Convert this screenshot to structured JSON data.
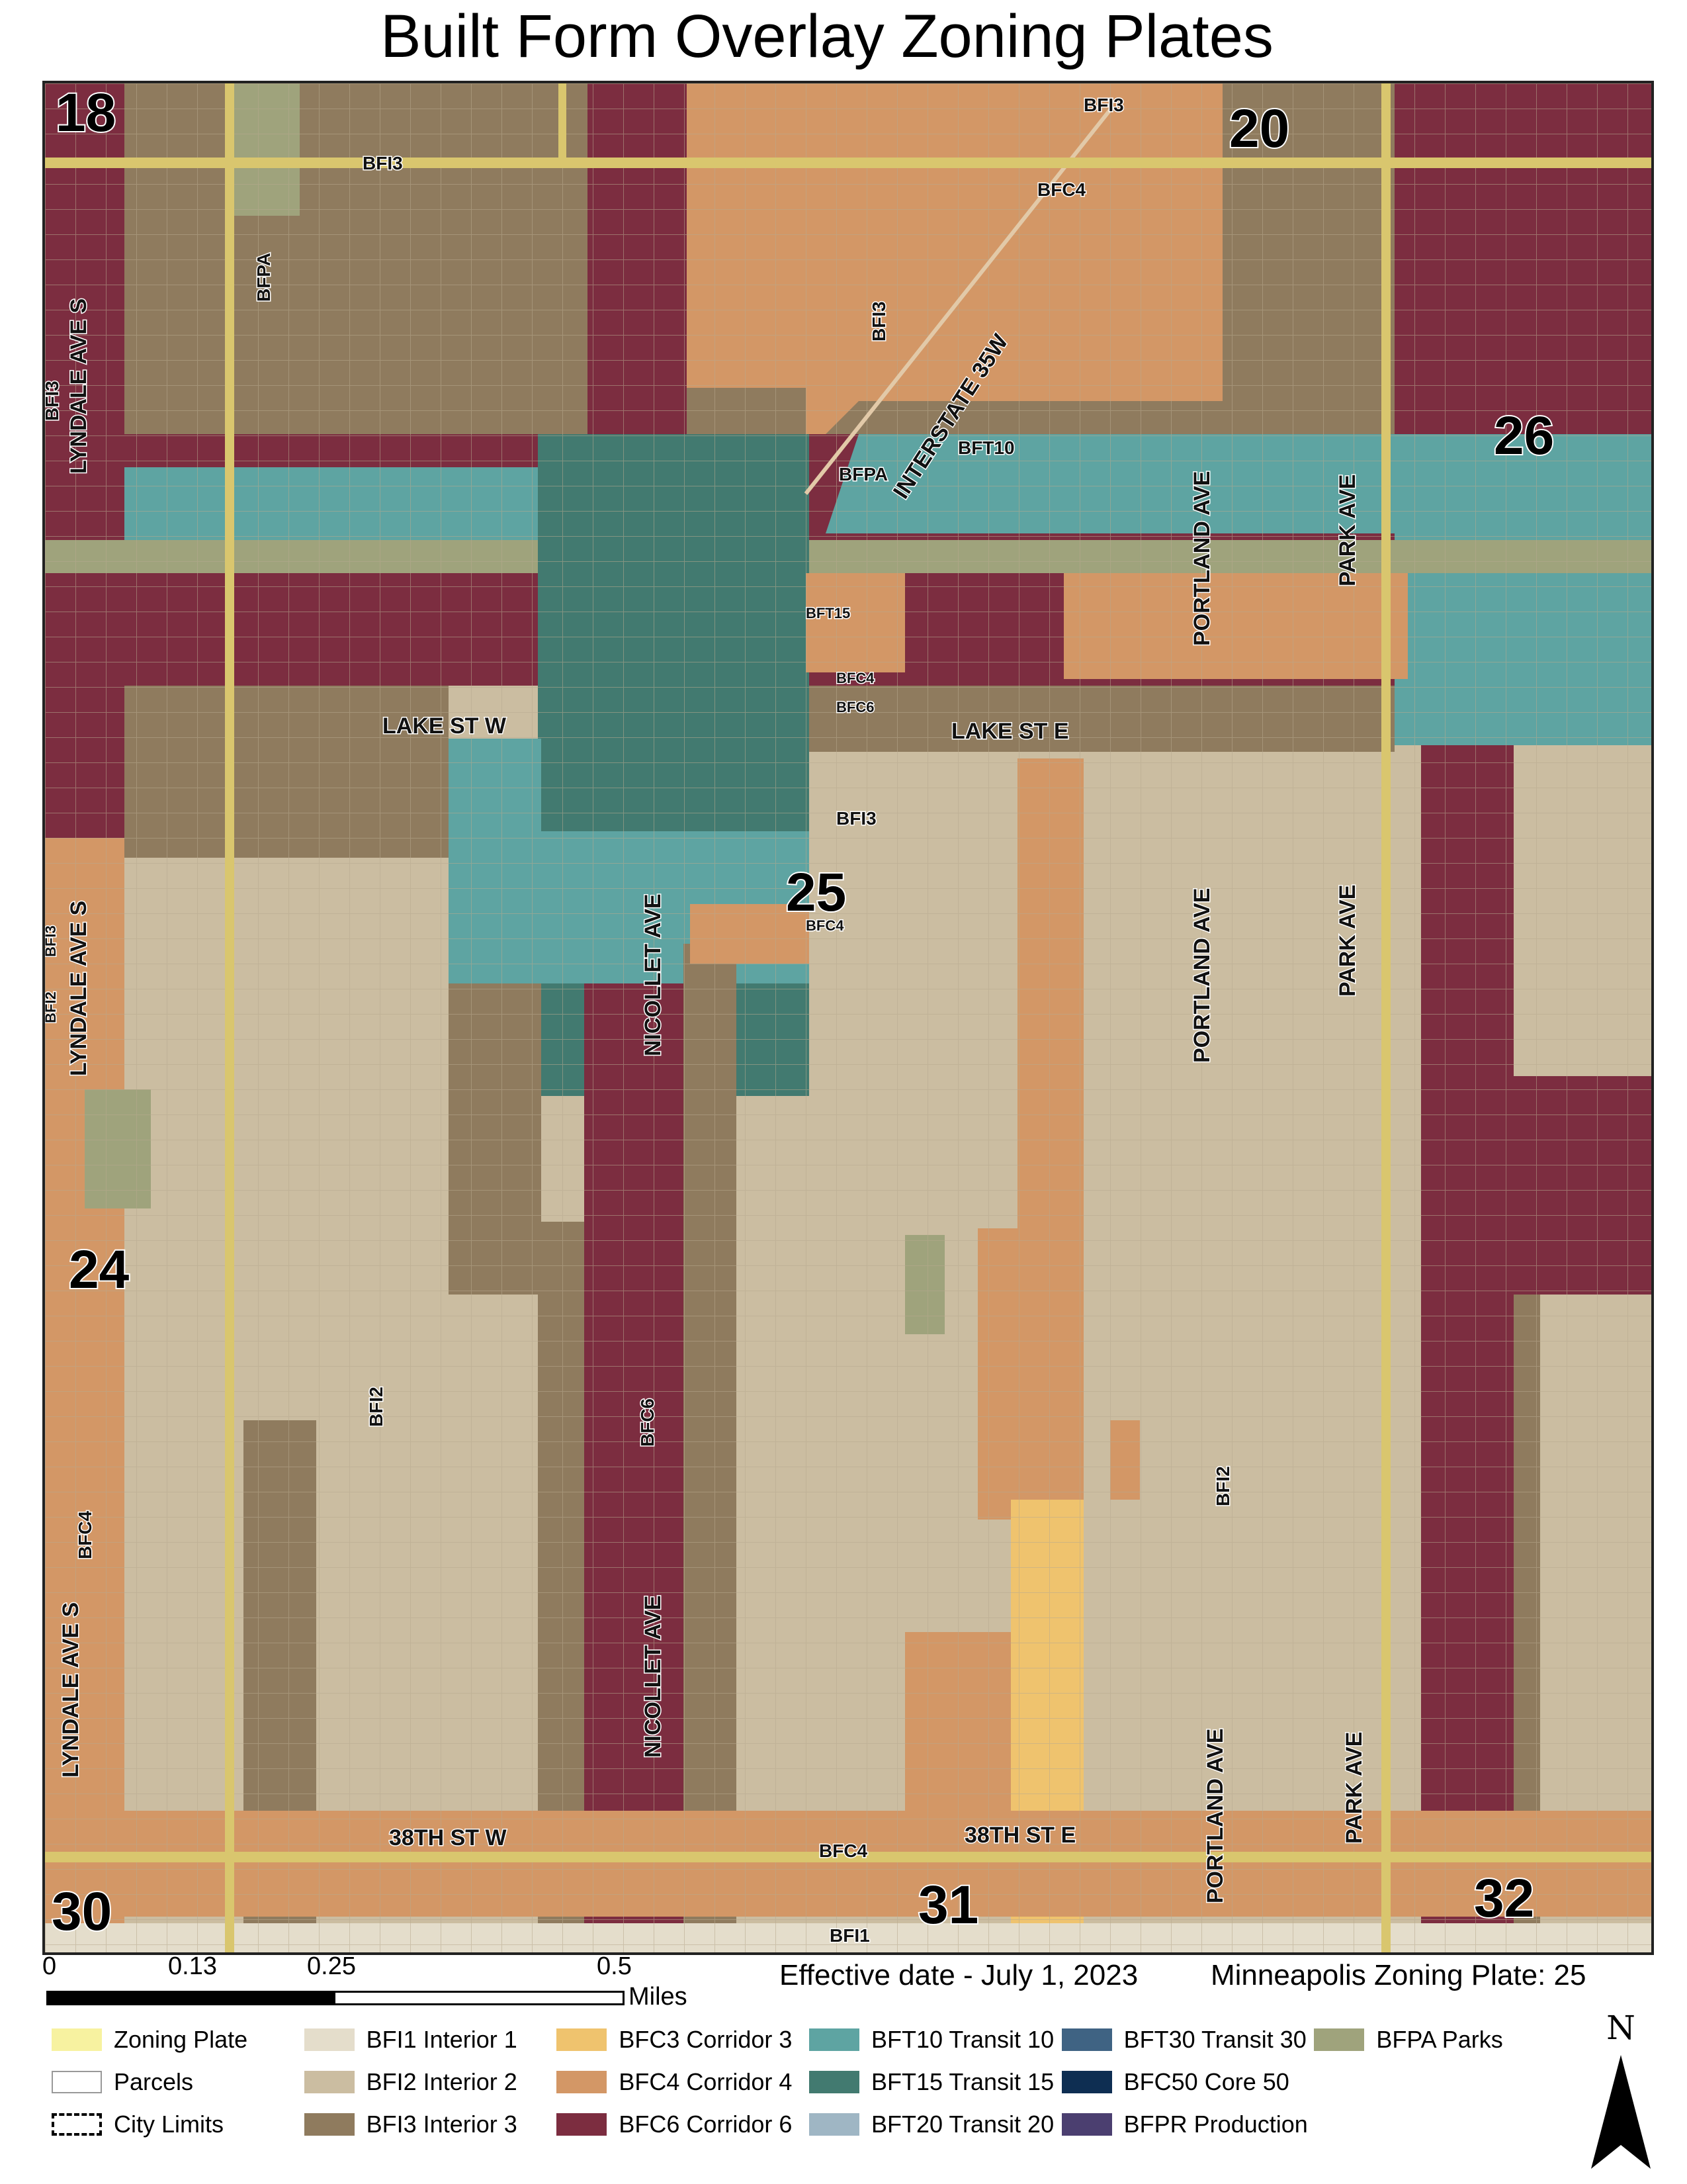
{
  "title": "Built Form Overlay Zoning Plates",
  "colors": {
    "bfi1": "#e4ddcb",
    "bfi2": "#cbbda1",
    "bfi3": "#8f7b5e",
    "bfc3": "#efc36e",
    "bfc4": "#d39766",
    "bfc6": "#7c2d40",
    "bft10": "#5ea4a2",
    "bft15": "#427a70",
    "bfpa": "#9fa37c",
    "plate": "#f5ea8c",
    "road": "#d9c66e"
  },
  "plates": [
    {
      "label": "18"
    },
    {
      "label": "20"
    },
    {
      "label": "26"
    },
    {
      "label": "25"
    },
    {
      "label": "24"
    },
    {
      "label": "30"
    },
    {
      "label": "31"
    },
    {
      "label": "32"
    }
  ],
  "streets": [
    {
      "label": "LYNDALE AVE S"
    },
    {
      "label": "LYNDALE AVE S"
    },
    {
      "label": "LYNDALE AVE S"
    },
    {
      "label": "NICOLLET AVE"
    },
    {
      "label": "NICOLLET AVE"
    },
    {
      "label": "PORTLAND AVE"
    },
    {
      "label": "PORTLAND AVE"
    },
    {
      "label": "PORTLAND AVE"
    },
    {
      "label": "PARK AVE"
    },
    {
      "label": "PARK AVE"
    },
    {
      "label": "PARK AVE"
    },
    {
      "label": "LAKE ST W"
    },
    {
      "label": "LAKE ST E"
    },
    {
      "label": "38TH ST W"
    },
    {
      "label": "38TH ST E"
    },
    {
      "label": "INTERSTATE 35W"
    }
  ],
  "zone_labels": [
    {
      "label": "BFI3"
    },
    {
      "label": "BFI3"
    },
    {
      "label": "BFC4"
    },
    {
      "label": "BFPA"
    },
    {
      "label": "BFI3"
    },
    {
      "label": "BFI3"
    },
    {
      "label": "BFT10"
    },
    {
      "label": "BFPA"
    },
    {
      "label": "BFT15"
    },
    {
      "label": "BFC4"
    },
    {
      "label": "BFC6"
    },
    {
      "label": "BFI3"
    },
    {
      "label": "BFC4"
    },
    {
      "label": "BFI3"
    },
    {
      "label": "BFI2"
    },
    {
      "label": "BFI2"
    },
    {
      "label": "BFC6"
    },
    {
      "label": "BFI2"
    },
    {
      "label": "BFC4"
    },
    {
      "label": "BFC4"
    },
    {
      "label": "BFI1"
    }
  ],
  "scale_bar": {
    "ticks": [
      "0",
      "0.13",
      "0.25",
      "0.5"
    ],
    "unit": "Miles"
  },
  "effective_date": "Effective date - July 1, 2023",
  "plate_caption": "Minneapolis Zoning Plate: 25",
  "legend": [
    {
      "label": "Zoning Plate",
      "color": "#f7f2a0",
      "style": "fill"
    },
    {
      "label": "Parcels",
      "color": "#ffffff",
      "style": "outline"
    },
    {
      "label": "City Limits",
      "color": "#ffffff",
      "style": "dash"
    },
    {
      "label": "BFI1 Interior 1",
      "color": "#e4ddcb",
      "style": "fill"
    },
    {
      "label": "BFI2 Interior 2",
      "color": "#cbbda1",
      "style": "fill"
    },
    {
      "label": "BFI3 Interior 3",
      "color": "#8f7b5e",
      "style": "fill"
    },
    {
      "label": "BFC3 Corridor 3",
      "color": "#efc36e",
      "style": "fill"
    },
    {
      "label": "BFC4 Corridor 4",
      "color": "#d39766",
      "style": "fill"
    },
    {
      "label": "BFC6 Corridor 6",
      "color": "#7c2d40",
      "style": "fill"
    },
    {
      "label": "BFT10 Transit 10",
      "color": "#5ea4a2",
      "style": "fill"
    },
    {
      "label": "BFT15 Transit 15",
      "color": "#427a70",
      "style": "fill"
    },
    {
      "label": "BFT20 Transit 20",
      "color": "#9fb6c4",
      "style": "fill"
    },
    {
      "label": "BFT30 Transit 30",
      "color": "#3f6383",
      "style": "fill"
    },
    {
      "label": "BFC50 Core 50",
      "color": "#0e2e52",
      "style": "fill"
    },
    {
      "label": "BFPR Production",
      "color": "#4b3f70",
      "style": "fill"
    },
    {
      "label": "BFPA Parks",
      "color": "#9fa37c",
      "style": "fill"
    }
  ],
  "north_label": "N"
}
